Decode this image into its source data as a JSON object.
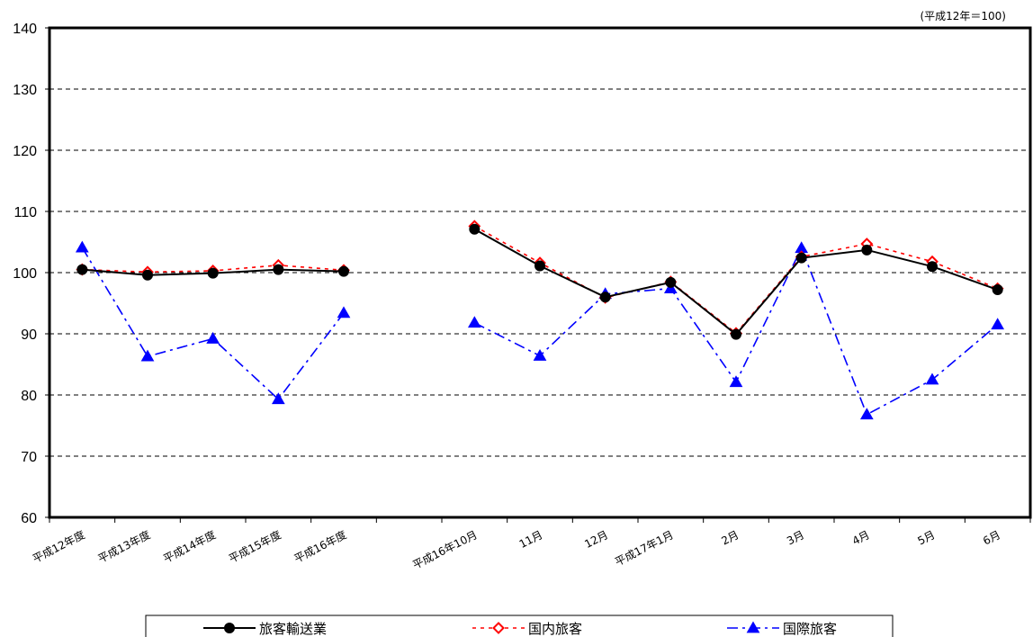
{
  "chart_data": {
    "type": "line",
    "unit_note": "(平成12年＝100)",
    "categories": [
      "平成12年度",
      "平成13年度",
      "平成14年度",
      "平成15年度",
      "平成16年度",
      "",
      "平成16年10月",
      "11月",
      "12月",
      "平成17年1月",
      "2月",
      "3月",
      "4月",
      "5月",
      "6月"
    ],
    "ylim": [
      60,
      140
    ],
    "yticks": [
      60,
      70,
      80,
      90,
      100,
      110,
      120,
      130,
      140
    ],
    "grid": true,
    "legend_position": "bottom",
    "series": [
      {
        "name": "旅客輸送業",
        "color": "#000000",
        "line_style": "solid",
        "marker": "circle",
        "values": [
          100.5,
          99.6,
          99.9,
          100.5,
          100.2,
          null,
          107.1,
          101.1,
          96.0,
          98.4,
          89.9,
          102.4,
          103.7,
          101.0,
          97.2
        ]
      },
      {
        "name": "国内旅客",
        "color": "#ff0000",
        "line_style": "dotted",
        "marker": "diamond-open",
        "values": [
          100.5,
          100.1,
          100.3,
          101.2,
          100.4,
          null,
          107.6,
          101.6,
          95.9,
          98.5,
          90.1,
          102.6,
          104.7,
          101.8,
          97.4
        ]
      },
      {
        "name": "国際旅客",
        "color": "#0000ff",
        "line_style": "dashdot",
        "marker": "triangle",
        "values": [
          104.1,
          86.3,
          89.2,
          79.3,
          93.4,
          null,
          91.8,
          86.4,
          96.5,
          97.4,
          82.1,
          104.0,
          76.8,
          82.5,
          91.5
        ]
      }
    ]
  }
}
